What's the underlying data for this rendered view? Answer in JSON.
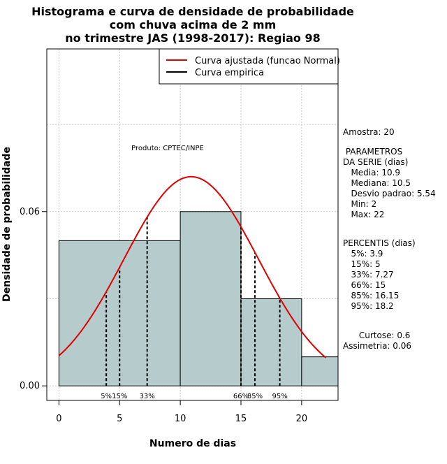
{
  "chart_data": {
    "type": "histogram",
    "title": [
      "Histograma e curva de densidade de probabilidade",
      "com chuva acima de 2 mm",
      "no trimestre JAS (1998-2017): Regiao 98"
    ],
    "xlabel": "Numero de dias",
    "ylabel": "Densidade de probabilidade",
    "xlim": [
      -1,
      23
    ],
    "ylim": [
      -0.005,
      0.116
    ],
    "xticks": [
      0,
      5,
      10,
      15,
      20
    ],
    "yticks": [
      {
        "value": 0.0,
        "label": "0.00"
      },
      {
        "value": 0.06,
        "label": "0.06"
      }
    ],
    "grid": true,
    "bin_edges": [
      0,
      10,
      15,
      20,
      23
    ],
    "densities": [
      0.05,
      0.06,
      0.03,
      0.01
    ],
    "bar_color": "#b6cccc",
    "normal_curve": {
      "mean": 10.9,
      "sd": 5.54,
      "x_range": [
        0,
        22
      ],
      "color": "#e00000"
    },
    "percentile_lines": [
      {
        "label": "5%",
        "x": 3.9
      },
      {
        "label": "15%",
        "x": 5
      },
      {
        "label": "33%",
        "x": 7.27
      },
      {
        "label": "66%",
        "x": 15
      },
      {
        "label": "85%",
        "x": 16.15
      },
      {
        "label": "95%",
        "x": 18.2
      }
    ],
    "legend": {
      "position": "top-right",
      "items": [
        {
          "label": "Curva ajustada (funcao Normal)",
          "color": "#e00000"
        },
        {
          "label": "Curva empirica",
          "color": "#000000"
        }
      ]
    },
    "annotation": "Produto: CPTEC/INPE"
  },
  "side_panel": [
    "Amostra: 20",
    " PARAMETROS",
    "DA SERIE (dias)",
    "   Media: 10.9",
    "   Mediana: 10.5",
    "   Desvio padrao: 5.54",
    "   Min: 2",
    "   Max: 22",
    "PERCENTIS (dias)",
    "   5%: 3.9",
    "   15%: 5",
    "   33%: 7.27",
    "   66%: 15",
    "   85%: 16.15",
    "   95%: 18.2",
    "      Curtose: 0.6",
    "Assimetria: 0.06"
  ]
}
